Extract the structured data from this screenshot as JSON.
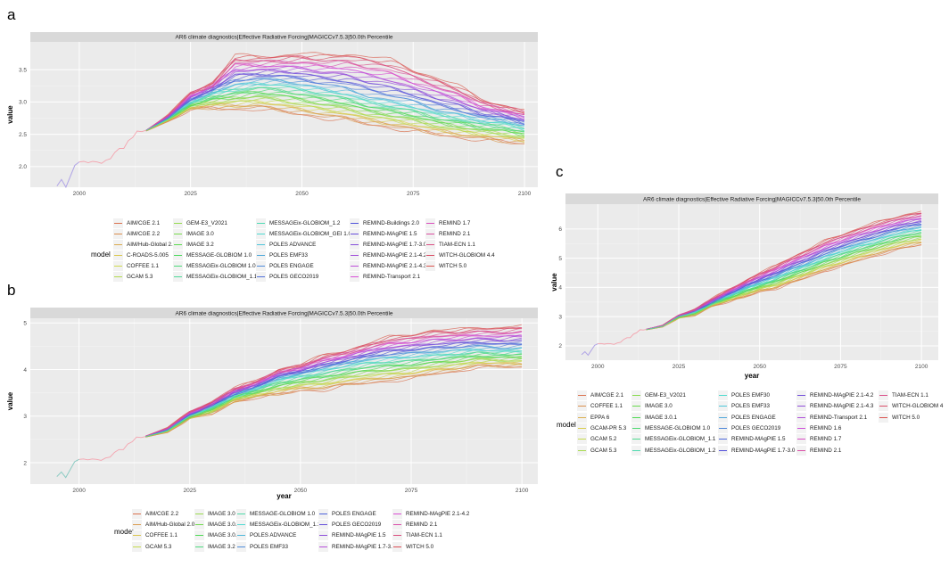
{
  "panels": [
    {
      "label": "a",
      "chart_data": {
        "type": "line",
        "title": "AR6 climate diagnostics|Effective Radiative Forcing|MAGICCv7.5.3|50.0th Percentile",
        "xlabel": "",
        "ylabel": "value",
        "xticks": [
          2000,
          2025,
          2050,
          2075,
          2100
        ],
        "yticks": [
          2.0,
          2.5,
          3.0,
          3.5
        ],
        "ytick_labels": [
          "2.0",
          "2.5",
          "3.0",
          "3.5"
        ],
        "xlim": [
          1989,
          2103
        ],
        "ylim": [
          1.68,
          3.93
        ],
        "grid": true,
        "legend_title": "model",
        "legend_placement": "bottom",
        "legend": [
          "AIM/CGE 2.1",
          "AIM/CGE 2.2",
          "AIM/Hub-Global 2.0",
          "C-ROADS-5.005",
          "COFFEE 1.1",
          "GCAM 5.3",
          "GEM-E3_V2021",
          "IMAGE 3.0",
          "IMAGE 3.2",
          "MESSAGE-GLOBIOM 1.0",
          "MESSAGEix-GLOBIOM 1.0",
          "MESSAGEix-GLOBIOM_1.1",
          "MESSAGEix-GLOBIOM_1.2",
          "MESSAGEix-GLOBIOM_GEI 1.0",
          "POLES ADVANCE",
          "POLES EMF33",
          "POLES ENGAGE",
          "POLES GECO2019",
          "REMIND-Buildings 2.0",
          "REMIND-MAgPIE 1.5",
          "REMIND-MAgPIE 1.7-3.0",
          "REMIND-MAgPIE 2.1-4.2",
          "REMIND-MAgPIE 2.1-4.3",
          "REMIND-Transport 2.1",
          "REMIND 1.7",
          "REMIND 2.1",
          "TIAM-ECN 1.1",
          "WITCH-GLOBIOM 4.4",
          "WITCH 5.0"
        ],
        "historical": {
          "x": [
            1995,
            1996,
            1997,
            1998,
            1999,
            2000,
            2001,
            2002,
            2003,
            2004,
            2005,
            2006,
            2007,
            2008,
            2009,
            2010,
            2011,
            2012,
            2013,
            2014,
            2015
          ],
          "y": [
            1.7,
            1.8,
            1.68,
            1.85,
            2.02,
            2.07,
            2.08,
            2.06,
            2.08,
            2.07,
            2.05,
            2.1,
            2.12,
            2.22,
            2.28,
            2.28,
            2.4,
            2.45,
            2.55,
            2.54,
            2.56
          ]
        },
        "scenario_envelope": {
          "x": [
            2015,
            2020,
            2025,
            2030,
            2035,
            2040,
            2045,
            2050,
            2055,
            2060,
            2065,
            2070,
            2075,
            2080,
            2085,
            2090,
            2095,
            2100
          ],
          "high": [
            2.56,
            2.8,
            3.15,
            3.3,
            3.72,
            3.7,
            3.72,
            3.75,
            3.72,
            3.75,
            3.7,
            3.65,
            3.5,
            3.38,
            3.25,
            3.05,
            2.95,
            2.87
          ],
          "median": [
            2.56,
            2.75,
            3.0,
            3.15,
            3.25,
            3.3,
            3.3,
            3.25,
            3.2,
            3.15,
            3.05,
            3.0,
            2.95,
            2.85,
            2.8,
            2.72,
            2.7,
            2.62
          ],
          "low": [
            2.55,
            2.7,
            2.88,
            2.9,
            2.88,
            2.9,
            2.85,
            2.8,
            2.75,
            2.72,
            2.65,
            2.6,
            2.55,
            2.5,
            2.45,
            2.42,
            2.38,
            2.35
          ]
        }
      }
    },
    {
      "label": "b",
      "chart_data": {
        "type": "line",
        "title": "AR6 climate diagnostics|Effective Radiative Forcing|MAGICCv7.5.3|50.0th Percentile",
        "xlabel": "year",
        "ylabel": "value",
        "xticks": [
          2000,
          2025,
          2050,
          2075,
          2100
        ],
        "yticks": [
          2,
          3,
          4,
          5
        ],
        "ytick_labels": [
          "2",
          "3",
          "4",
          "5"
        ],
        "xlim": [
          1989,
          2103.6
        ],
        "ylim": [
          1.54,
          5.1
        ],
        "grid": true,
        "legend_title": "model",
        "legend_placement": "bottom",
        "legend": [
          "AIM/CGE 2.2",
          "AIM/Hub-Global 2.0",
          "COFFEE 1.1",
          "GCAM 5.3",
          "IMAGE 3.0",
          "IMAGE 3.0.1",
          "IMAGE 3.0.2",
          "IMAGE 3.2",
          "MESSAGE-GLOBIOM 1.0",
          "MESSAGEix-GLOBIOM_1.1",
          "POLES ADVANCE",
          "POLES EMF33",
          "POLES ENGAGE",
          "POLES GECO2019",
          "REMIND-MAgPIE 1.5",
          "REMIND-MAgPIE 1.7-3.0",
          "REMIND-MAgPIE 2.1-4.2",
          "REMIND 2.1",
          "TIAM-ECN 1.1",
          "WITCH 5.0"
        ],
        "historical": {
          "x": [
            1995,
            1996,
            1997,
            1998,
            1999,
            2000,
            2001,
            2002,
            2003,
            2004,
            2005,
            2006,
            2007,
            2008,
            2009,
            2010,
            2011,
            2012,
            2013,
            2014,
            2015
          ],
          "y": [
            1.7,
            1.8,
            1.68,
            1.85,
            2.02,
            2.07,
            2.08,
            2.06,
            2.08,
            2.07,
            2.05,
            2.1,
            2.12,
            2.22,
            2.28,
            2.28,
            2.4,
            2.45,
            2.55,
            2.54,
            2.56
          ]
        },
        "scenario_envelope": {
          "x": [
            2015,
            2020,
            2025,
            2030,
            2035,
            2040,
            2045,
            2050,
            2055,
            2060,
            2065,
            2070,
            2075,
            2080,
            2085,
            2090,
            2095,
            2100
          ],
          "high": [
            2.57,
            2.75,
            3.1,
            3.3,
            3.6,
            3.75,
            4.0,
            4.1,
            4.3,
            4.4,
            4.55,
            4.7,
            4.75,
            4.85,
            4.85,
            4.9,
            4.9,
            4.95
          ],
          "median": [
            2.56,
            2.7,
            3.0,
            3.2,
            3.45,
            3.6,
            3.8,
            3.9,
            4.0,
            4.1,
            4.2,
            4.25,
            4.3,
            4.35,
            4.4,
            4.45,
            4.42,
            4.45
          ],
          "low": [
            2.55,
            2.65,
            2.95,
            3.05,
            3.3,
            3.4,
            3.45,
            3.55,
            3.55,
            3.65,
            3.7,
            3.75,
            3.8,
            3.9,
            3.95,
            4.05,
            4.05,
            4.05
          ]
        }
      }
    },
    {
      "label": "c",
      "chart_data": {
        "type": "line",
        "title": "AR6 climate diagnostics|Effective Radiative Forcing|MAGICCv7.5.3|50.0th Percentile",
        "xlabel": "year",
        "ylabel": "value",
        "xticks": [
          2000,
          2025,
          2050,
          2075,
          2100
        ],
        "yticks": [
          2,
          3,
          4,
          5,
          6
        ],
        "ytick_labels": [
          "2",
          "3",
          "4",
          "5",
          "6"
        ],
        "xlim": [
          1990,
          2105.2
        ],
        "ylim": [
          1.51,
          6.85
        ],
        "grid": true,
        "legend_title": "model",
        "legend_placement": "bottom",
        "legend": [
          "AIM/CGE 2.1",
          "COFFEE 1.1",
          "EPPA 6",
          "GCAM-PR 5.3",
          "GCAM 5.2",
          "GCAM 5.3",
          "GEM-E3_V2021",
          "IMAGE 3.0",
          "IMAGE 3.0.1",
          "MESSAGE-GLOBIOM 1.0",
          "MESSAGEix-GLOBIOM_1.1",
          "MESSAGEix-GLOBIOM_1.2",
          "POLES EMF30",
          "POLES EMF33",
          "POLES ENGAGE",
          "POLES GECO2019",
          "REMIND-MAgPIE 1.5",
          "REMIND-MAgPIE 1.7-3.0",
          "REMIND-MAgPIE 2.1-4.2",
          "REMIND-MAgPIE 2.1-4.3",
          "REMIND-Transport 2.1",
          "REMIND 1.6",
          "REMIND 1.7",
          "REMIND 2.1",
          "TIAM-ECN 1.1",
          "WITCH-GLOBIOM 4",
          "WITCH 5.0"
        ],
        "historical": {
          "x": [
            1995,
            1996,
            1997,
            1998,
            1999,
            2000,
            2001,
            2002,
            2003,
            2004,
            2005,
            2006,
            2007,
            2008,
            2009,
            2010,
            2011,
            2012,
            2013,
            2014,
            2015
          ],
          "y": [
            1.7,
            1.8,
            1.68,
            1.85,
            2.02,
            2.07,
            2.08,
            2.06,
            2.08,
            2.07,
            2.05,
            2.1,
            2.12,
            2.22,
            2.28,
            2.28,
            2.4,
            2.45,
            2.55,
            2.54,
            2.56
          ]
        },
        "scenario_envelope": {
          "x": [
            2015,
            2020,
            2025,
            2030,
            2035,
            2040,
            2045,
            2050,
            2055,
            2060,
            2065,
            2070,
            2075,
            2080,
            2085,
            2090,
            2095,
            2100
          ],
          "high": [
            2.57,
            2.7,
            3.05,
            3.25,
            3.6,
            3.9,
            4.2,
            4.5,
            4.75,
            5.05,
            5.3,
            5.6,
            5.8,
            6.0,
            6.2,
            6.35,
            6.5,
            6.6
          ],
          "median": [
            2.56,
            2.68,
            3.0,
            3.15,
            3.45,
            3.7,
            3.95,
            4.15,
            4.35,
            4.6,
            4.8,
            5.05,
            5.25,
            5.45,
            5.6,
            5.8,
            5.95,
            6.05
          ],
          "low": [
            2.55,
            2.65,
            2.95,
            3.05,
            3.35,
            3.5,
            3.65,
            3.85,
            3.95,
            4.15,
            4.35,
            4.55,
            4.7,
            4.9,
            5.05,
            5.2,
            5.35,
            5.45
          ]
        }
      }
    }
  ],
  "colors": {
    "panel_bg": "#ebebeb",
    "strip_bg": "#d9d9d9",
    "grid": "#ffffff"
  }
}
